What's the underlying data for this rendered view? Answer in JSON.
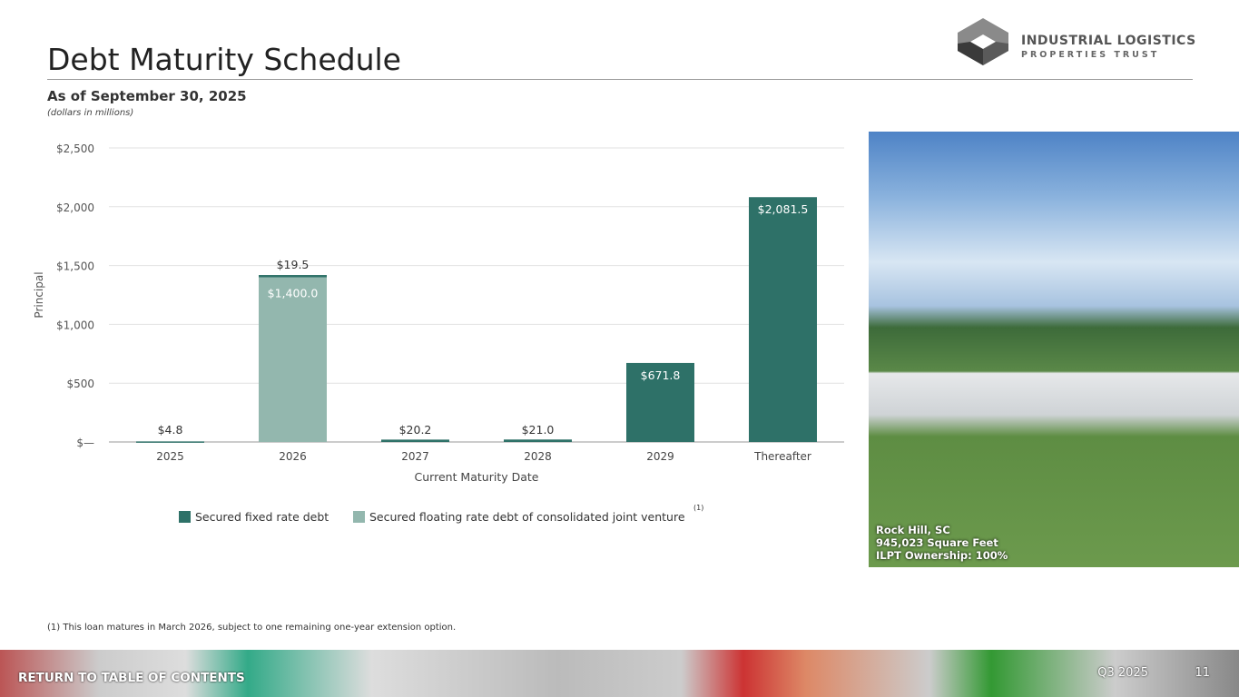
{
  "header": {
    "title": "Debt Maturity Schedule",
    "subtitle": "As of September 30, 2025",
    "units": "(dollars in millions)"
  },
  "logo": {
    "line1": "INDUSTRIAL LOGISTICS",
    "line2": "PROPERTIES TRUST"
  },
  "chart_data": {
    "type": "bar",
    "stacked": true,
    "categories": [
      "2025",
      "2026",
      "2027",
      "2028",
      "2029",
      "Thereafter"
    ],
    "series": [
      {
        "name": "Secured floating rate debt of consolidated joint venture",
        "color": "#93b7ae",
        "values": [
          0,
          1400.0,
          0,
          0,
          0,
          0
        ],
        "labels": [
          "",
          "$1,400.0",
          "",
          "",
          "",
          ""
        ]
      },
      {
        "name": "Secured fixed rate debt",
        "color": "#2e7168",
        "values": [
          4.8,
          19.5,
          20.2,
          21.0,
          671.8,
          2081.5
        ],
        "labels": [
          "$4.8",
          "$19.5",
          "$20.2",
          "$21.0",
          "$671.8",
          "$2,081.5"
        ]
      }
    ],
    "legend_note": "(1)",
    "xlabel": "Current Maturity Date",
    "ylabel": "Principal",
    "ylim": [
      0,
      2500
    ],
    "yticks": [
      0,
      500,
      1000,
      1500,
      2000,
      2500
    ],
    "ytick_labels": [
      "$—",
      "$500",
      "$1,000",
      "$1,500",
      "$2,000",
      "$2,500"
    ],
    "grid": true,
    "legend": "bottom"
  },
  "photo": {
    "caption": [
      "Rock Hill, SC",
      "945,023 Square Feet",
      "ILPT Ownership: 100%"
    ]
  },
  "footnote": "(1)    This loan matures in March 2026, subject to one remaining one-year extension option.",
  "footer": {
    "toc": "RETURN TO TABLE OF CONTENTS",
    "quarter": "Q3 2025",
    "page": "11"
  }
}
